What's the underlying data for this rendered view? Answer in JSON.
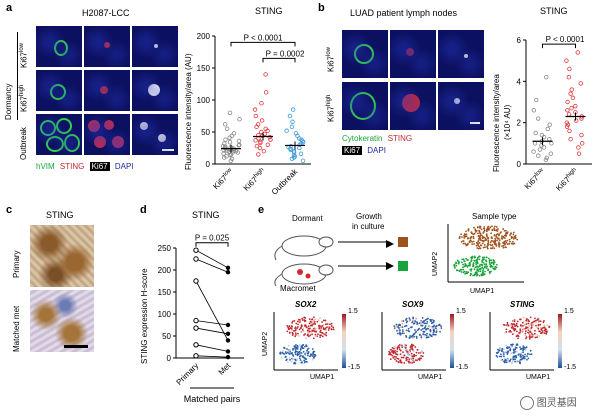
{
  "panels": {
    "a": {
      "label": "a",
      "title": "H2087-LCC",
      "group_dormancy": "Dormancy",
      "row_labels": [
        "Ki67",
        "Ki67",
        "Outbreak"
      ],
      "row_sups": [
        "low",
        "high",
        ""
      ],
      "legend": {
        "hvim": "hVIM",
        "sting": "STING",
        "ki67": "Ki67",
        "dapi": "DAPI"
      },
      "chart_title": "STING",
      "ylabel": "Fluorescence intensity/area (AU)",
      "categories": [
        "Ki67",
        "Ki67",
        "Outbreak"
      ],
      "category_sups": [
        "low",
        "high",
        ""
      ],
      "p1": "P < 0.0001",
      "p2": "P = 0.0002",
      "ticks": [
        "0",
        "50",
        "100",
        "150",
        "200"
      ]
    },
    "b": {
      "label": "b",
      "title": "LUAD patient lymph nodes",
      "row_labels": [
        "Ki67",
        "Ki67"
      ],
      "row_sups": [
        "low",
        "high"
      ],
      "legend": {
        "cytokeratin": "Cytokeratin",
        "sting": "STING",
        "ki67": "Ki67",
        "dapi": "DAPI"
      },
      "chart_title": "STING",
      "ylabel": "Fluorescence intensity/area",
      "ylabel2": "(×10⁴ AU)",
      "categories": [
        "Ki67",
        "Ki67"
      ],
      "category_sups": [
        "low",
        "high"
      ],
      "p1": "P < 0.0001",
      "ticks": [
        "0",
        "2",
        "4",
        "6"
      ]
    },
    "c": {
      "label": "c",
      "title": "STING",
      "row_labels": [
        "Primary",
        "Matched met"
      ]
    },
    "d": {
      "label": "d",
      "title": "STING",
      "ylabel": "STING expression H-score",
      "p1": "P = 0.025",
      "categories": [
        "Primary",
        "Met"
      ],
      "xfooter": "Matched pairs",
      "ticks": [
        "0",
        "50",
        "100",
        "150",
        "200",
        "250"
      ]
    },
    "e": {
      "label": "e",
      "dormant": "Dormant",
      "growth": "Growth",
      "growth2": "in culture",
      "macromet": "Macromet",
      "sample_type": "Sample type",
      "umap1": "UMAP1",
      "umap2": "UMAP2",
      "genes": [
        "SOX2",
        "SOX9",
        "STING"
      ],
      "scale_max": "1.5",
      "scale_min": "-1.5",
      "colors": {
        "dormant": "#a0521d",
        "macromet": "#1aa33a",
        "red": "#c0272d",
        "blue": "#2c5ea8"
      }
    }
  },
  "watermark": "图灵基因",
  "chart_data": [
    {
      "type": "scatter",
      "title": "STING",
      "panel": "a",
      "categories": [
        "Ki67low",
        "Ki67high",
        "Outbreak"
      ],
      "ylabel": "Fluorescence intensity/area (AU)",
      "ylim": [
        0,
        200
      ],
      "means": [
        24,
        43,
        29
      ],
      "series": [
        {
          "name": "Ki67low",
          "values": [
            5,
            8,
            10,
            12,
            14,
            15,
            16,
            18,
            18,
            19,
            20,
            20,
            21,
            22,
            22,
            23,
            24,
            25,
            25,
            26,
            27,
            28,
            29,
            30,
            32,
            34,
            36,
            38,
            41,
            44,
            48,
            55,
            62,
            70,
            80
          ]
        },
        {
          "name": "Ki67high",
          "values": [
            15,
            20,
            25,
            28,
            30,
            33,
            35,
            37,
            38,
            40,
            42,
            44,
            45,
            47,
            50,
            52,
            55,
            58,
            62,
            68,
            75,
            85,
            95,
            112,
            140
          ]
        },
        {
          "name": "Outbreak",
          "values": [
            5,
            8,
            10,
            12,
            14,
            16,
            18,
            20,
            22,
            24,
            25,
            26,
            28,
            30,
            32,
            34,
            36,
            38,
            40,
            44,
            48,
            52,
            58,
            66,
            75,
            85
          ]
        }
      ]
    },
    {
      "type": "scatter",
      "title": "STING",
      "panel": "b",
      "categories": [
        "Ki67low",
        "Ki67high"
      ],
      "ylabel": "Fluorescence intensity/area (×10⁴ AU)",
      "ylim": [
        0,
        6
      ],
      "means": [
        1.1,
        2.3
      ],
      "series": [
        {
          "name": "Ki67low",
          "values": [
            0.2,
            0.3,
            0.4,
            0.5,
            0.6,
            0.7,
            0.8,
            0.9,
            1.0,
            1.0,
            1.1,
            1.2,
            1.3,
            1.4,
            1.5,
            1.7,
            1.9,
            2.2,
            2.6,
            3.1,
            4.2
          ]
        },
        {
          "name": "Ki67high",
          "values": [
            0.5,
            0.8,
            1.0,
            1.2,
            1.4,
            1.6,
            1.8,
            1.9,
            2.0,
            2.1,
            2.2,
            2.3,
            2.4,
            2.5,
            2.6,
            2.7,
            2.8,
            3.0,
            3.2,
            3.4,
            3.6,
            3.9,
            4.2,
            4.6,
            5.0,
            5.4
          ]
        }
      ]
    },
    {
      "type": "line",
      "title": "STING",
      "panel": "d",
      "categories": [
        "Primary",
        "Met"
      ],
      "ylabel": "STING expression H-score",
      "ylim": [
        0,
        250
      ],
      "series": [
        {
          "name": "pair1",
          "values": [
            245,
            205
          ]
        },
        {
          "name": "pair2",
          "values": [
            225,
            195
          ]
        },
        {
          "name": "pair3",
          "values": [
            175,
            40
          ]
        },
        {
          "name": "pair4",
          "values": [
            85,
            75
          ]
        },
        {
          "name": "pair5",
          "values": [
            68,
            55
          ]
        },
        {
          "name": "pair6",
          "values": [
            30,
            15
          ]
        },
        {
          "name": "pair7",
          "values": [
            5,
            2
          ]
        }
      ]
    }
  ]
}
